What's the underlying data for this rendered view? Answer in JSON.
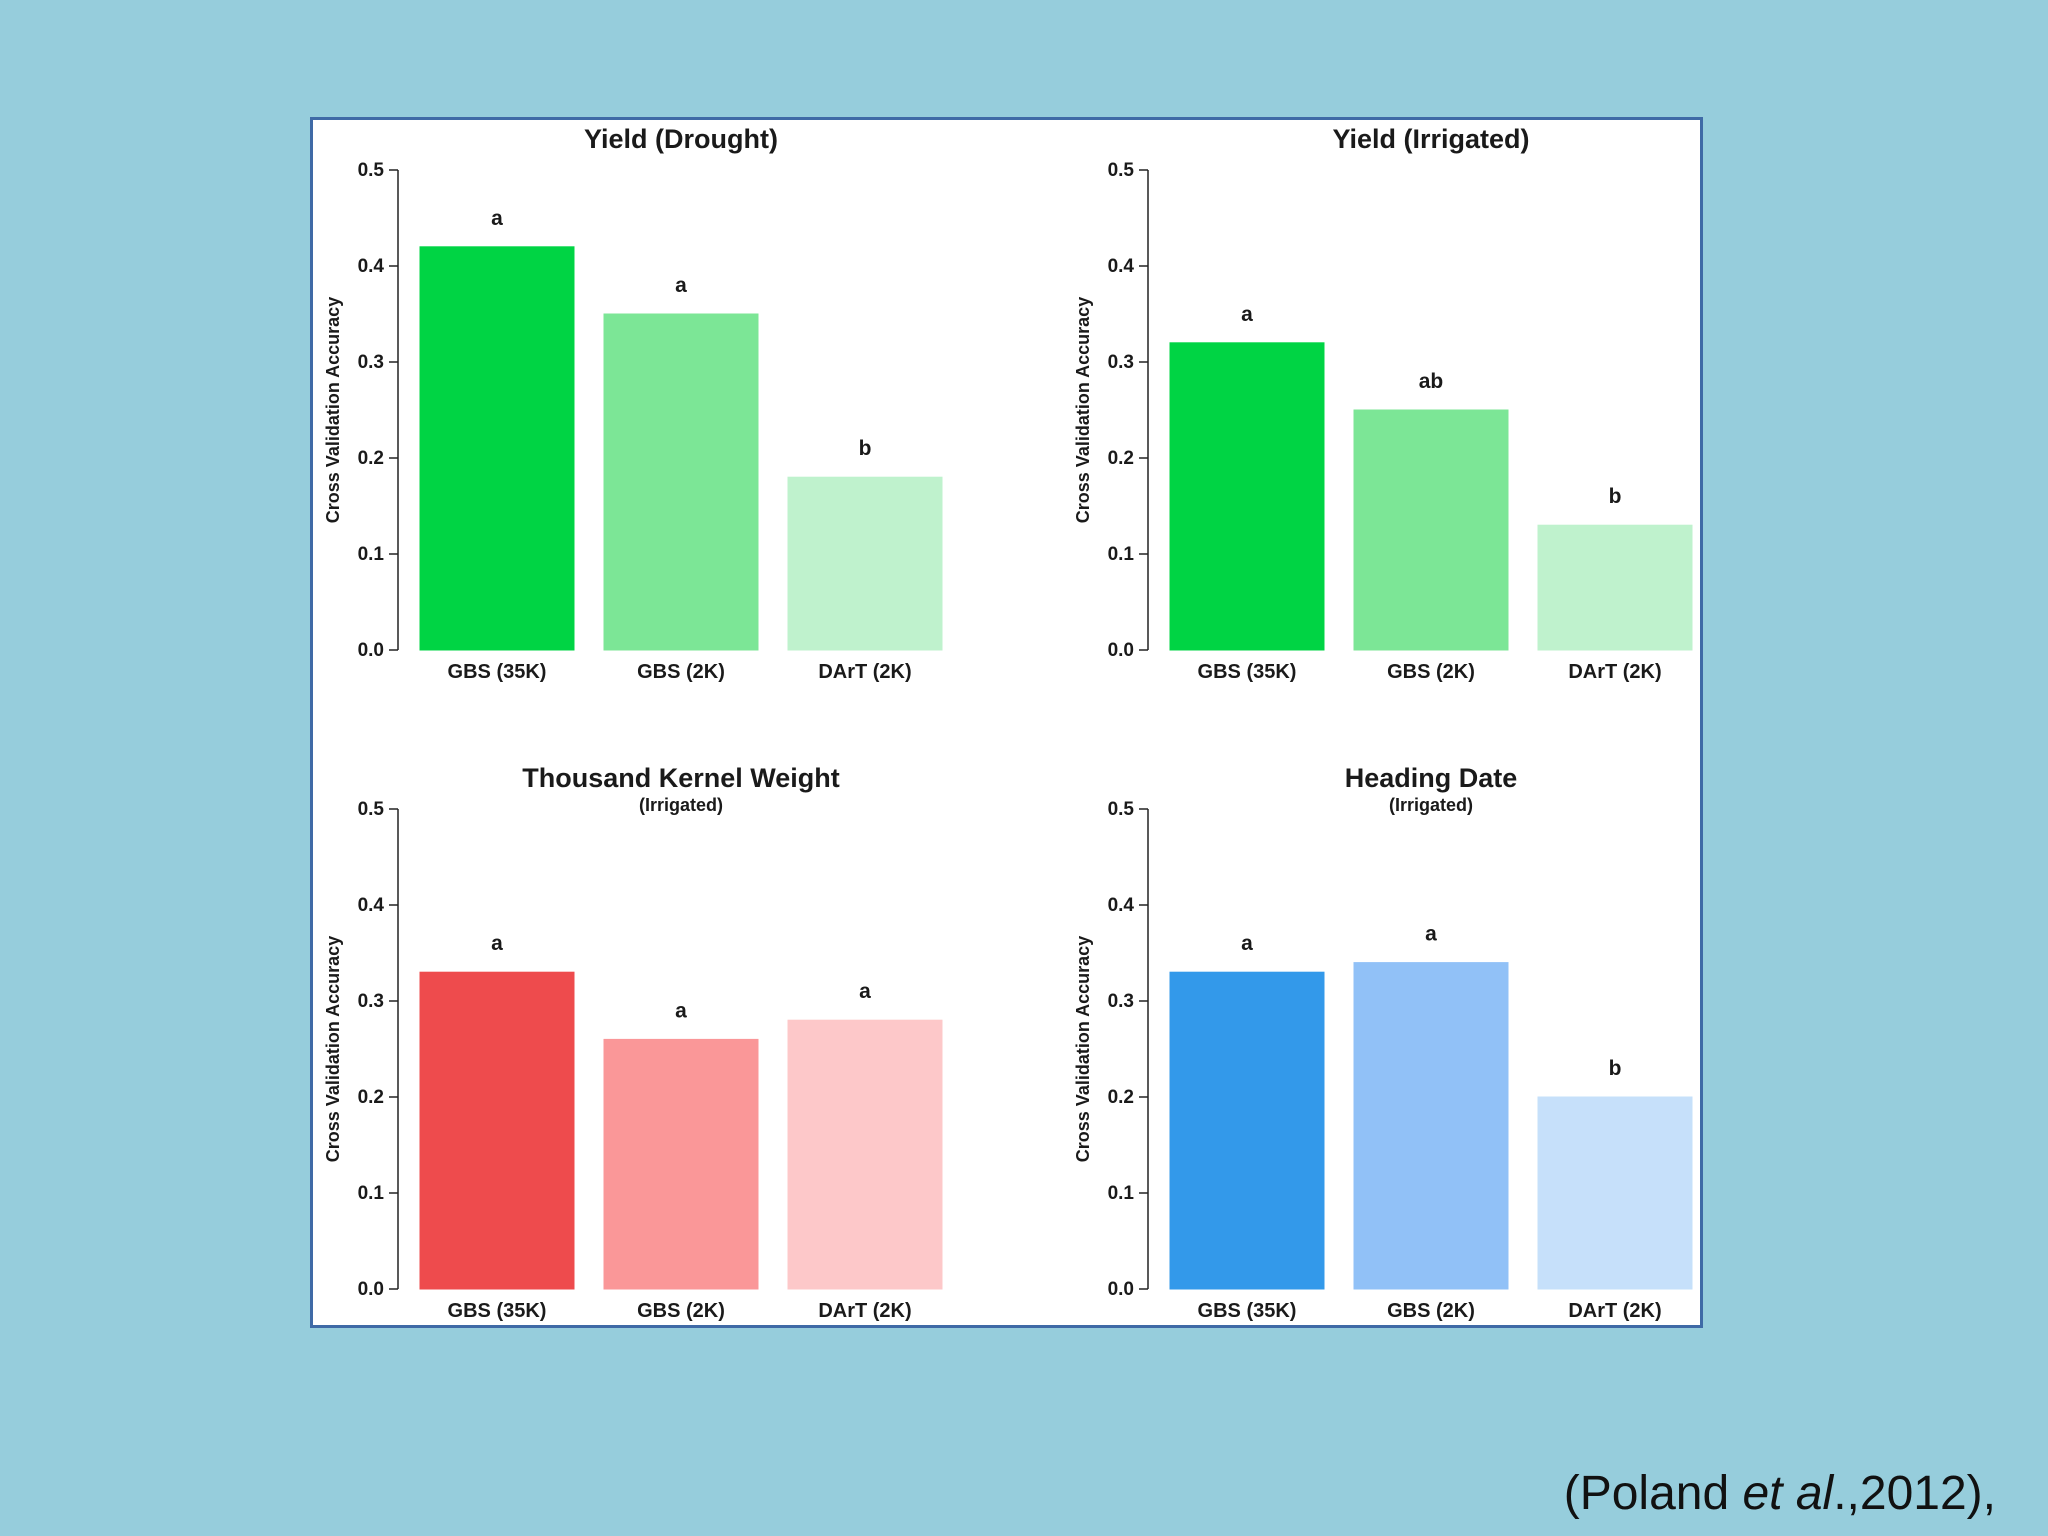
{
  "citation": {
    "before": "(Poland ",
    "italic": "et al",
    "after": ".,2012),"
  },
  "chart_data": [
    {
      "type": "bar",
      "title": "Yield (Drought)",
      "subtitle": "",
      "ylabel": "Cross Validation Accuracy",
      "xlabel": "",
      "ylim": [
        0,
        0.5
      ],
      "yticks": [
        "0.0",
        "0.1",
        "0.2",
        "0.3",
        "0.4",
        "0.5"
      ],
      "categories": [
        "GBS (35K)",
        "GBS (2K)",
        "DArT (2K)"
      ],
      "values": [
        0.42,
        0.35,
        0.18
      ],
      "labels": [
        "a",
        "a",
        "b"
      ],
      "colors": [
        "#00d444",
        "#7ce696",
        "#bff2cd"
      ],
      "grid": false
    },
    {
      "type": "bar",
      "title": "Yield (Irrigated)",
      "subtitle": "",
      "ylabel": "Cross Validation Accuracy",
      "xlabel": "",
      "ylim": [
        0,
        0.5
      ],
      "yticks": [
        "0.0",
        "0.1",
        "0.2",
        "0.3",
        "0.4",
        "0.5"
      ],
      "categories": [
        "GBS (35K)",
        "GBS (2K)",
        "DArT (2K)"
      ],
      "values": [
        0.32,
        0.25,
        0.13
      ],
      "labels": [
        "a",
        "ab",
        "b"
      ],
      "colors": [
        "#00d444",
        "#7ce696",
        "#bff2cd"
      ],
      "grid": false
    },
    {
      "type": "bar",
      "title": "Thousand Kernel Weight",
      "subtitle": "(Irrigated)",
      "ylabel": "Cross Validation Accuracy",
      "xlabel": "",
      "ylim": [
        0,
        0.5
      ],
      "yticks": [
        "0.0",
        "0.1",
        "0.2",
        "0.3",
        "0.4",
        "0.5"
      ],
      "categories": [
        "GBS (35K)",
        "GBS (2K)",
        "DArT (2K)"
      ],
      "values": [
        0.33,
        0.26,
        0.28
      ],
      "labels": [
        "a",
        "a",
        "a"
      ],
      "colors": [
        "#ee4b4d",
        "#fa9798",
        "#fdc8c9"
      ],
      "grid": false
    },
    {
      "type": "bar",
      "title": "Heading Date",
      "subtitle": "(Irrigated)",
      "ylabel": "Cross Validation Accuracy",
      "xlabel": "",
      "ylim": [
        0,
        0.5
      ],
      "yticks": [
        "0.0",
        "0.1",
        "0.2",
        "0.3",
        "0.4",
        "0.5"
      ],
      "categories": [
        "GBS (35K)",
        "GBS (2K)",
        "DArT (2K)"
      ],
      "values": [
        0.33,
        0.34,
        0.2
      ],
      "labels": [
        "a",
        "a",
        "b"
      ],
      "colors": [
        "#3399ea",
        "#91c1f7",
        "#c6e0fa"
      ],
      "grid": false
    }
  ]
}
